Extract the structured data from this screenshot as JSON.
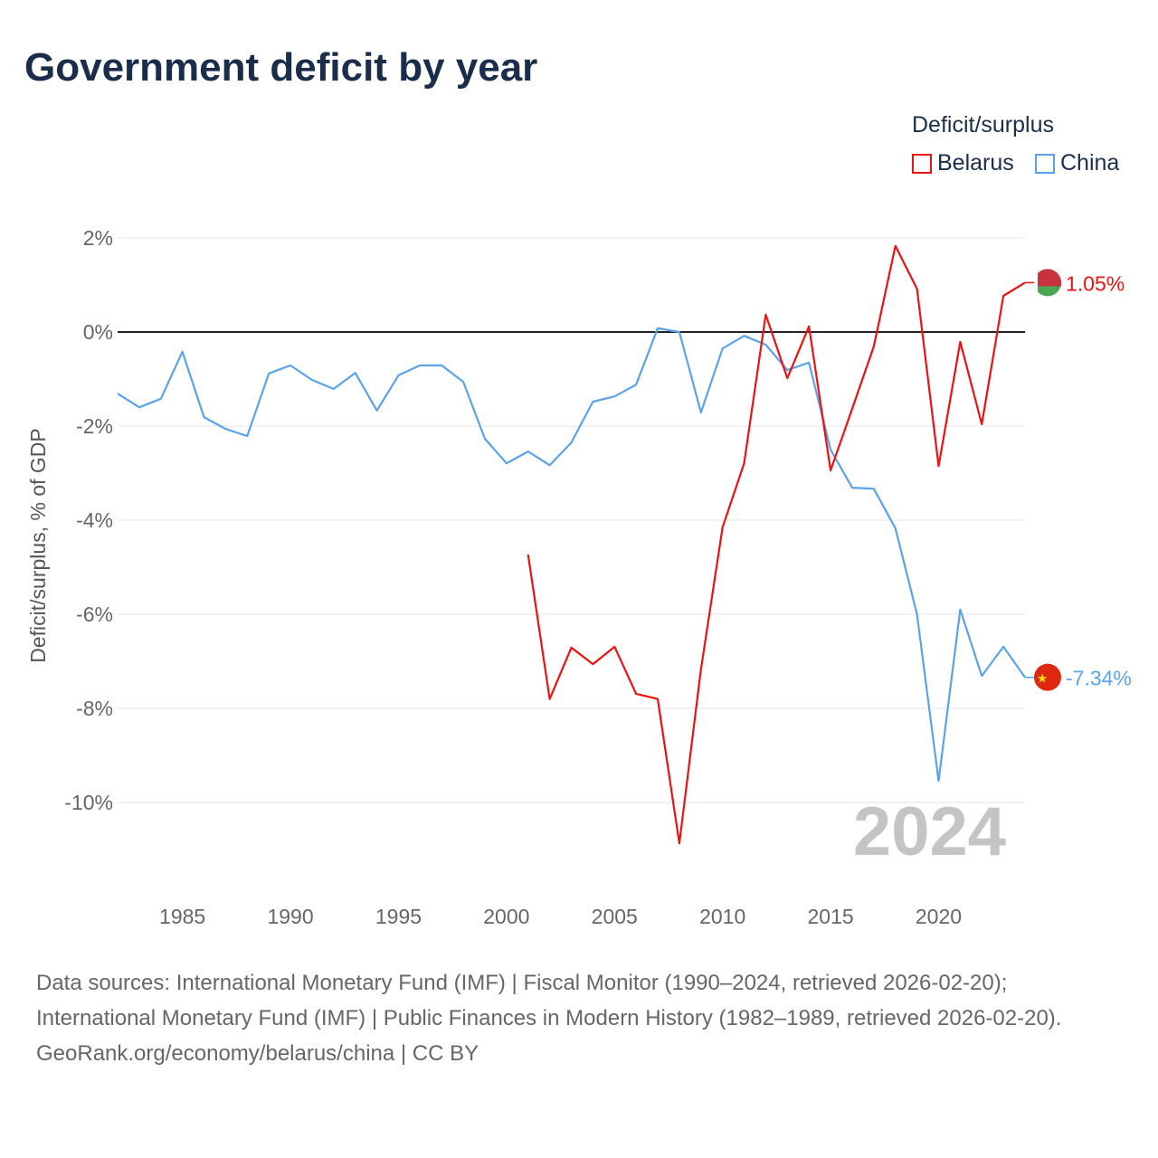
{
  "title": "Government deficit by year",
  "legend": {
    "title": "Deficit/surplus",
    "items": [
      {
        "name": "Belarus",
        "color": "#ee1111"
      },
      {
        "name": "China",
        "color": "#5ba3e8"
      }
    ]
  },
  "watermark_year": "2024",
  "sources": {
    "line1": "Data sources: International Monetary Fund (IMF) | Fiscal Monitor (1990–2024, retrieved 2026-02-20); International Monetary Fund (IMF) | Public Finances in Modern History (1982–1989, retrieved 2026-02-20).",
    "line2": "GeoRank.org/economy/belarus/china | CC BY"
  },
  "chart_data": {
    "type": "line",
    "ylabel": "Deficit/surplus, % of GDP",
    "xlim": [
      1982,
      2024
    ],
    "ylim": [
      -12,
      2.2
    ],
    "yticks": [
      2,
      0,
      -2,
      -4,
      -6,
      -8,
      -10
    ],
    "ytick_labels": [
      "2%",
      "0%",
      "-2%",
      "-4%",
      "-6%",
      "-8%",
      "-10%"
    ],
    "xticks": [
      1985,
      1990,
      1995,
      2000,
      2005,
      2010,
      2015,
      2020
    ],
    "xtick_labels": [
      "1985",
      "1990",
      "1995",
      "2000",
      "2005",
      "2010",
      "2015",
      "2020"
    ],
    "series": [
      {
        "name": "China",
        "color": "#5ba3e8",
        "end_label": "-7.34%",
        "start": 1982,
        "values": [
          -1.31,
          -1.6,
          -1.42,
          -0.42,
          -1.81,
          -2.06,
          -2.21,
          -0.88,
          -0.71,
          -1.02,
          -1.21,
          -0.87,
          -1.67,
          -0.92,
          -0.71,
          -0.71,
          -1.06,
          -2.27,
          -2.79,
          -2.54,
          -2.83,
          -2.35,
          -1.48,
          -1.37,
          -1.12,
          0.08,
          0.0,
          -1.71,
          -0.35,
          -0.08,
          -0.27,
          -0.81,
          -0.65,
          -2.5,
          -3.31,
          -3.33,
          -4.17,
          -6.0,
          -9.54,
          -5.9,
          -7.31,
          -6.69,
          -7.34
        ]
      },
      {
        "name": "Belarus",
        "color": "#ee1111",
        "end_label": "1.05%",
        "start": 2001,
        "values": [
          -4.73,
          -7.8,
          -6.71,
          -7.06,
          -6.69,
          -7.69,
          -7.8,
          -10.87,
          -7.17,
          -4.15,
          -2.79,
          0.37,
          -0.98,
          0.12,
          -2.94,
          -1.63,
          -0.31,
          1.83,
          0.92,
          -2.85,
          -0.21,
          -1.96,
          0.77,
          1.05
        ]
      }
    ]
  }
}
